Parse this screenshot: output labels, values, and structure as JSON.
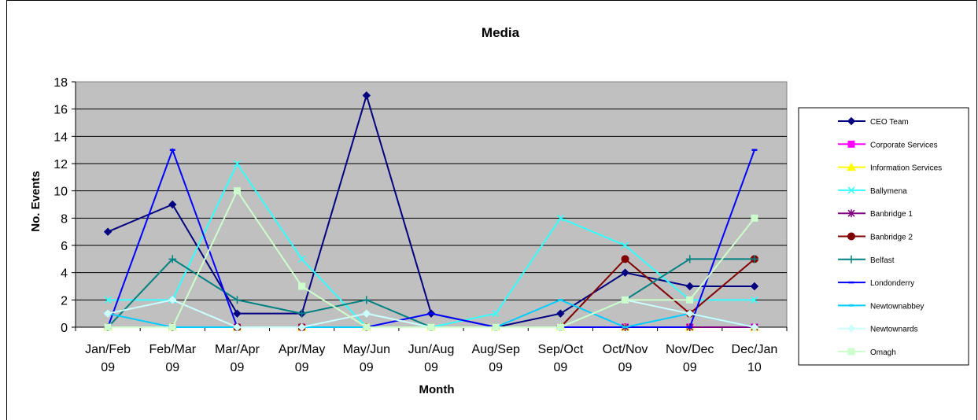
{
  "chart_data": {
    "type": "line",
    "title": "Media",
    "xlabel": "Month",
    "ylabel": "No. Events",
    "ylim": [
      0,
      18
    ],
    "ytick_step": 2,
    "grid": "horizontal",
    "legend_position": "right",
    "plot_background": "#c0c0c0",
    "categories": [
      [
        "Jan/Feb",
        "09"
      ],
      [
        "Feb/Mar",
        "09"
      ],
      [
        "Mar/Apr",
        "09"
      ],
      [
        "Apr/May",
        "09"
      ],
      [
        "May/Jun",
        "09"
      ],
      [
        "Jun/Aug",
        "09"
      ],
      [
        "Aug/Sep",
        "09"
      ],
      [
        "Sep/Oct",
        "09"
      ],
      [
        "Oct/Nov",
        "09"
      ],
      [
        "Nov/Dec",
        "09"
      ],
      [
        "Dec/Jan",
        "10"
      ]
    ],
    "series": [
      {
        "name": "CEO Team",
        "color": "#000080",
        "marker": "diamond",
        "values": [
          7,
          9,
          1,
          1,
          17,
          1,
          0,
          1,
          4,
          3,
          3
        ]
      },
      {
        "name": "Corporate Services",
        "color": "#ff00ff",
        "marker": "square",
        "values": [
          0,
          0,
          0,
          0,
          0,
          0,
          0,
          0,
          0,
          0,
          0
        ]
      },
      {
        "name": "Information Services",
        "color": "#ffff00",
        "marker": "triangle",
        "values": [
          0,
          0,
          0,
          0,
          0,
          0,
          0,
          0,
          0,
          0,
          0
        ]
      },
      {
        "name": "Ballymena",
        "color": "#33ffff",
        "marker": "x",
        "values": [
          2,
          2,
          12,
          5,
          0,
          0,
          1,
          8,
          6,
          2,
          2
        ]
      },
      {
        "name": "Banbridge 1",
        "color": "#800080",
        "marker": "star",
        "values": [
          0,
          0,
          0,
          0,
          0,
          0,
          0,
          0,
          0,
          0,
          0
        ]
      },
      {
        "name": "Banbridge 2",
        "color": "#800000",
        "marker": "circle",
        "values": [
          0,
          0,
          0,
          0,
          0,
          0,
          0,
          0,
          5,
          1,
          5
        ]
      },
      {
        "name": "Belfast",
        "color": "#008080",
        "marker": "plus",
        "values": [
          0,
          5,
          2,
          1,
          2,
          0,
          0,
          0,
          2,
          5,
          5
        ]
      },
      {
        "name": "Londonderry",
        "color": "#0000ff",
        "marker": "dash",
        "values": [
          0,
          13,
          0,
          0,
          0,
          1,
          0,
          0,
          0,
          0,
          13
        ]
      },
      {
        "name": "Newtownabbey",
        "color": "#00ccff",
        "marker": "dash",
        "values": [
          1,
          0,
          0,
          0,
          0,
          0,
          0,
          2,
          0,
          1,
          0
        ]
      },
      {
        "name": "Newtownards",
        "color": "#ccffff",
        "marker": "diamond",
        "values": [
          1,
          2,
          0,
          0,
          1,
          0,
          0,
          0,
          2,
          1,
          0
        ]
      },
      {
        "name": "Omagh",
        "color": "#ccffcc",
        "marker": "square",
        "values": [
          0,
          0,
          10,
          3,
          0,
          0,
          0,
          0,
          2,
          2,
          8
        ]
      }
    ]
  }
}
